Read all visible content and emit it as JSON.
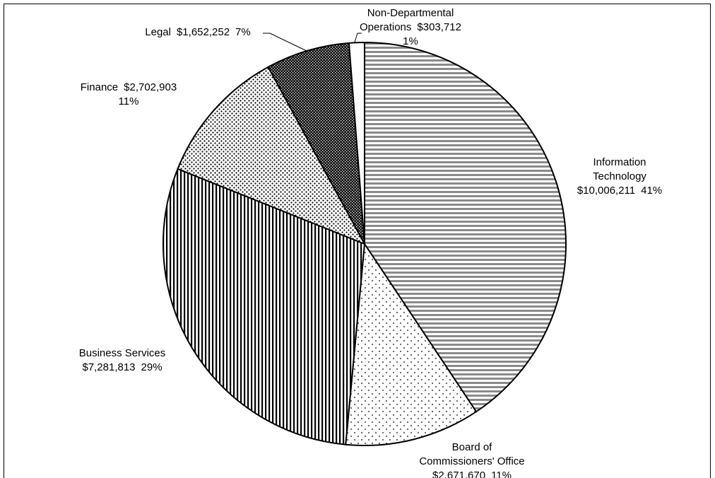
{
  "chart_data": {
    "type": "pie",
    "categories": [
      "Information Technology",
      "Board of Commissioners' Office",
      "Business Services",
      "Finance",
      "Legal",
      "Non-Departmental Operations"
    ],
    "values": [
      10006211,
      2671670,
      7281813,
      2702903,
      1652252,
      303712
    ],
    "value_labels": [
      "$10,006,211",
      "$2,671,670",
      "$7,281,813",
      "$2,702,903",
      "$1,652,252",
      "$303,712"
    ],
    "percent_labels": [
      "41%",
      "11%",
      "29%",
      "11%",
      "7%",
      "1%"
    ]
  }
}
